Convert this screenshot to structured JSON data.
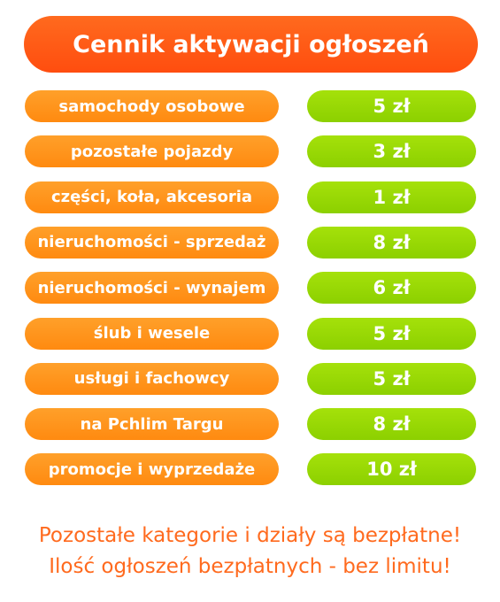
{
  "header": {
    "title": "Cennik aktywacji ogłoszeń"
  },
  "table": {
    "rows": [
      [
        "samochody osobowe",
        "5 zł"
      ],
      [
        "pozostałe pojazdy",
        "3 zł"
      ],
      [
        "części, koła, akcesoria",
        "1 zł"
      ],
      [
        "nieruchomości - sprzedaż",
        "8 zł"
      ],
      [
        "nieruchomości - wynajem",
        "6 zł"
      ],
      [
        "ślub i wesele",
        "5 zł"
      ],
      [
        "usługi i fachowcy",
        "5 zł"
      ],
      [
        "na Pchlim Targu",
        "8 zł"
      ],
      [
        "promocje i wyprzedaże",
        "10 zł"
      ]
    ]
  },
  "footer": {
    "lines": [
      "Pozostałe kategorie i działy są bezpłatne!",
      "Ilość ogłoszeń bezpłatnych - bez limitu!"
    ]
  }
}
